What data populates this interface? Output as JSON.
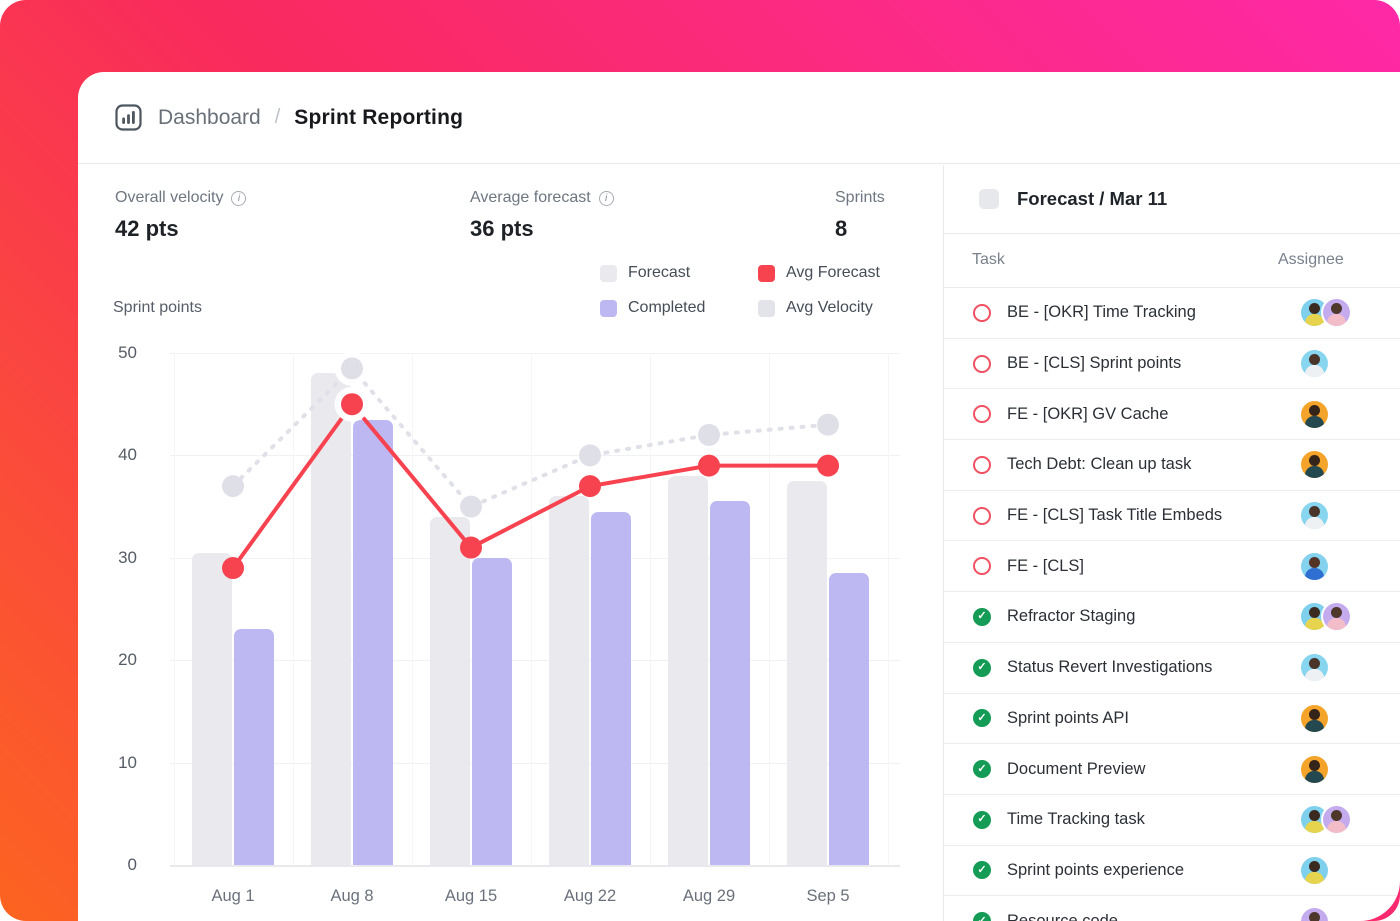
{
  "breadcrumb": {
    "icon": "bar-chart-icon",
    "section": "Dashboard",
    "separator": "/",
    "page": "Sprint Reporting"
  },
  "stats": [
    {
      "label": "Overall velocity",
      "value": "42 pts",
      "has_info": true
    },
    {
      "label": "Average forecast",
      "value": "36 pts",
      "has_info": true
    },
    {
      "label": "Sprints",
      "value": "8",
      "has_info": false
    }
  ],
  "legend": [
    {
      "label": "Forecast",
      "color": "#e9e9ee"
    },
    {
      "label": "Avg Forecast",
      "color": "#f74350"
    },
    {
      "label": "Completed",
      "color": "#bdb8f2"
    },
    {
      "label": "Avg Velocity",
      "color": "#e3e4ea"
    }
  ],
  "chart_data": {
    "type": "bar",
    "title": "Sprint points",
    "categories": [
      "Aug 1",
      "Aug 8",
      "Aug 15",
      "Aug 22",
      "Aug 29",
      "Sep 5"
    ],
    "series": [
      {
        "name": "Forecast",
        "kind": "bar",
        "color": "#e9e9ee",
        "values": [
          30.5,
          48,
          34,
          36,
          38,
          37.5
        ]
      },
      {
        "name": "Completed",
        "kind": "bar",
        "color": "#bdb8f2",
        "values": [
          23,
          43.5,
          30,
          34.5,
          35.5,
          28.5
        ]
      },
      {
        "name": "Avg Forecast",
        "kind": "line",
        "color": "#f74350",
        "values": [
          29,
          45,
          31,
          37,
          39,
          39
        ]
      },
      {
        "name": "Avg Velocity",
        "kind": "line-dashed",
        "color": "#e0e1e8",
        "values": [
          37,
          48.5,
          35,
          40,
          42,
          43
        ]
      }
    ],
    "xlabel": "",
    "ylabel": "Sprint points",
    "ylim": [
      0,
      50
    ],
    "yticks": [
      0,
      10,
      20,
      30,
      40,
      50
    ],
    "grid": true,
    "legend_position": "top-right",
    "highlight_index": 1
  },
  "panel": {
    "swatch_color": "#e7e8ec",
    "title": "Forecast / Mar 11",
    "columns": [
      "Task",
      "Assignee"
    ],
    "tasks": [
      {
        "status": "open",
        "title": "BE - [OKR] Time Tracking",
        "avatars": [
          "cyan-a",
          "purple"
        ]
      },
      {
        "status": "open",
        "title": "BE - [CLS] Sprint points",
        "avatars": [
          "cyan-b"
        ]
      },
      {
        "status": "open",
        "title": "FE - [OKR] GV Cache",
        "avatars": [
          "amber"
        ]
      },
      {
        "status": "open",
        "title": "Tech Debt: Clean up task",
        "avatars": [
          "amber"
        ]
      },
      {
        "status": "open",
        "title": "FE - [CLS] Task Title Embeds",
        "avatars": [
          "cyan-b"
        ]
      },
      {
        "status": "open",
        "title": "FE - [CLS]",
        "avatars": [
          "cyan-c"
        ]
      },
      {
        "status": "done",
        "title": "Refractor Staging",
        "avatars": [
          "cyan-a",
          "purple"
        ]
      },
      {
        "status": "done",
        "title": "Status Revert Investigations",
        "avatars": [
          "cyan-b"
        ]
      },
      {
        "status": "done",
        "title": "Sprint points API",
        "avatars": [
          "amber"
        ]
      },
      {
        "status": "done",
        "title": "Document Preview",
        "avatars": [
          "amber"
        ]
      },
      {
        "status": "done",
        "title": "Time Tracking task",
        "avatars": [
          "cyan-a",
          "purple"
        ]
      },
      {
        "status": "done",
        "title": "Sprint points experience",
        "avatars": [
          "cyan-a"
        ]
      },
      {
        "status": "done",
        "title": "Resource code",
        "avatars": [
          "purple"
        ]
      }
    ]
  },
  "colors": {
    "gradient_top_right": "#fe29a7",
    "gradient_mid": "#f92a5d",
    "gradient_bottom_left": "#fc6420",
    "accent_red": "#f74350",
    "accent_purple": "#bdb8f2",
    "neutral_bar": "#e9e9ee",
    "status_open": "#f05061",
    "status_done": "#149b55"
  }
}
